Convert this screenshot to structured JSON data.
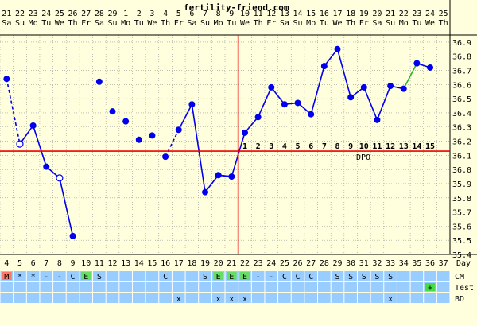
{
  "site": "fertility-friend.com",
  "chart_data": {
    "type": "line",
    "title": "",
    "ylim": [
      35.4,
      36.95
    ],
    "y_ticks": [
      "35.4",
      "35.5",
      "35.6",
      "35.7",
      "35.8",
      "35.9",
      "36.0",
      "36.1",
      "36.2",
      "36.3",
      "36.4",
      "36.5",
      "36.6",
      "36.7",
      "36.8",
      "36.9"
    ],
    "date_numbers": [
      "21",
      "22",
      "23",
      "24",
      "25",
      "26",
      "27",
      "28",
      "29",
      "1",
      "2",
      "3",
      "4",
      "5",
      "6",
      "7",
      "8",
      "9",
      "10",
      "11",
      "12",
      "13",
      "14",
      "15",
      "16",
      "17",
      "18",
      "19",
      "20",
      "21",
      "22",
      "23",
      "24",
      "25"
    ],
    "weekdays": [
      "Sa",
      "Su",
      "Mo",
      "Tu",
      "We",
      "Th",
      "Fr",
      "Sa",
      "Su",
      "Mo",
      "Tu",
      "We",
      "Th",
      "Fr",
      "Sa",
      "Su",
      "Mo",
      "Tu",
      "We",
      "Th",
      "Fr",
      "Sa",
      "Su",
      "Mo",
      "Tu",
      "We",
      "Th",
      "Fr",
      "Sa",
      "Su",
      "Mo",
      "Tu",
      "We",
      "Th"
    ],
    "cycle_days": [
      "4",
      "5",
      "6",
      "7",
      "8",
      "9",
      "10",
      "11",
      "12",
      "13",
      "14",
      "15",
      "16",
      "17",
      "18",
      "19",
      "20",
      "21",
      "22",
      "23",
      "24",
      "25",
      "26",
      "27",
      "28",
      "29",
      "30",
      "31",
      "32",
      "33",
      "34",
      "35",
      "36",
      "37"
    ],
    "temperatures": [
      36.64,
      36.18,
      36.31,
      36.02,
      35.94,
      35.53,
      null,
      36.62,
      36.41,
      36.34,
      36.21,
      36.24,
      36.09,
      36.28,
      36.46,
      35.84,
      35.96,
      35.95,
      36.26,
      36.37,
      36.58,
      36.46,
      36.47,
      36.39,
      36.73,
      36.85,
      36.51,
      36.58,
      36.35,
      36.59,
      36.57,
      36.75,
      36.72
    ],
    "open_circle_days": [
      1,
      4
    ],
    "disconnected_days": [
      7,
      8,
      9,
      10,
      11
    ],
    "dotted_segments": [
      [
        0,
        1
      ],
      [
        5,
        12
      ],
      [
        12,
        13
      ]
    ],
    "green_segment": [
      30,
      31
    ],
    "coverline": 36.13,
    "ovulation_day_index": 17,
    "dpo_start_index": 18,
    "dpo_labels": [
      "1",
      "2",
      "3",
      "4",
      "5",
      "6",
      "7",
      "8",
      "9",
      "10",
      "11",
      "12",
      "13",
      "14",
      "15"
    ],
    "dpo_text": "DPO",
    "day_label": "Day",
    "rows": {
      "cm": {
        "label": "CM",
        "values": [
          "M",
          "*",
          "*",
          "-",
          "-",
          "C",
          "E",
          "S",
          "",
          "",
          "",
          "",
          "C",
          "",
          "",
          "S",
          "E",
          "E",
          "E",
          "-",
          "-",
          "C",
          "C",
          "C",
          "",
          "S",
          "S",
          "S",
          "S",
          "S",
          "",
          "",
          "",
          ""
        ],
        "highlights": {
          "0": "#ff7766",
          "6": "#66dd66",
          "16": "#66dd66",
          "17": "#66dd66",
          "18": "#66dd66"
        }
      },
      "test": {
        "label": "Test",
        "values": [
          "",
          "",
          "",
          "",
          "",
          "",
          "",
          "",
          "",
          "",
          "",
          "",
          "",
          "",
          "",
          "",
          "",
          "",
          "",
          "",
          "",
          "",
          "",
          "",
          "",
          "",
          "",
          "",
          "",
          "",
          "",
          "",
          "+",
          ""
        ],
        "highlights": {
          "32": "#44dd44"
        }
      },
      "bd": {
        "label": "BD",
        "values": [
          "",
          "",
          "",
          "",
          "",
          "",
          "",
          "",
          "",
          "",
          "",
          "",
          "",
          "x",
          "",
          "",
          "x",
          "x",
          "x",
          "",
          "",
          "",
          "",
          "",
          "",
          "",
          "",
          "",
          "",
          "x",
          "",
          "",
          "",
          ""
        ]
      }
    },
    "colors": {
      "background": "#ffffdd",
      "line": "#0000ee",
      "coverline": "#ee0000",
      "green": "#22bb22",
      "row": "#99ccff",
      "grid": "#999999"
    }
  }
}
